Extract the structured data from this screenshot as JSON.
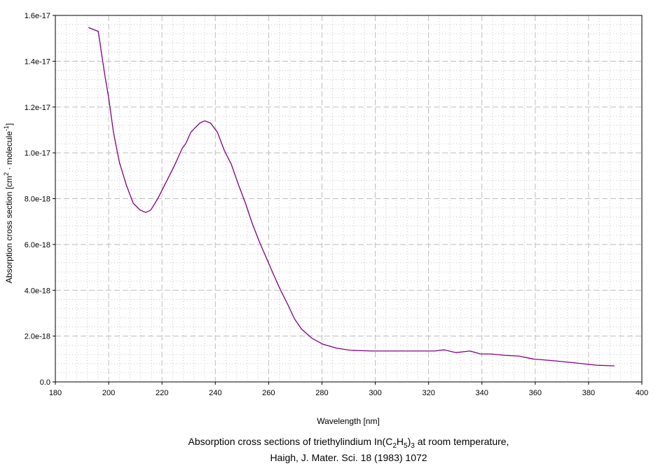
{
  "chart_data": {
    "type": "line",
    "xlabel": "Wavelength [nm]",
    "ylabel": {
      "main": "Absorption cross section [cm",
      "sup1": "2",
      "mid": " · molecule",
      "sup2": "-1",
      "end": "]"
    },
    "xlim": [
      180,
      400
    ],
    "ylim": [
      0,
      1.6e-17
    ],
    "x_ticks": [
      180,
      200,
      220,
      240,
      260,
      280,
      300,
      320,
      340,
      360,
      380,
      400
    ],
    "x_tick_labels": [
      "180",
      "200",
      "220",
      "240",
      "260",
      "280",
      "300",
      "320",
      "340",
      "360",
      "380",
      "400"
    ],
    "y_ticks": [
      0,
      2e-18,
      4e-18,
      6e-18,
      8e-18,
      1e-17,
      1.2e-17,
      1.4e-17,
      1.6e-17
    ],
    "y_tick_labels": [
      "0.0",
      "2.0e-18",
      "4.0e-18",
      "6.0e-18",
      "8.0e-18",
      "1.0e-17",
      "1.2e-17",
      "1.4e-17",
      "1.6e-17"
    ],
    "grid": true,
    "series": [
      {
        "name": "triethylindium",
        "color": "#800080",
        "x": [
          192.4,
          196.1,
          197.1,
          198.7,
          200,
          201.8,
          204,
          206.6,
          209.2,
          211.8,
          213.9,
          215.8,
          218.4,
          221,
          224.5,
          227.6,
          228.9,
          230.8,
          234.2,
          236,
          238.2,
          240.8,
          243.4,
          246,
          248.7,
          251.3,
          253.9,
          256.6,
          259.2,
          261.8,
          264.5,
          267.1,
          269.7,
          272.4,
          276.3,
          280.3,
          285.5,
          290.8,
          298.7,
          317.1,
          322.4,
          325.8,
          330.3,
          335.5,
          339.5,
          343.4,
          348.7,
          353.9,
          359.2,
          367.1,
          375,
          382.9,
          389.7
        ],
        "y": [
          1.547e-17,
          1.53e-17,
          1.45e-17,
          1.33e-17,
          1.24e-17,
          1.09e-17,
          9.6e-18,
          8.6e-18,
          7.8e-18,
          7.5e-18,
          7.4e-18,
          7.5e-18,
          8e-18,
          8.6e-18,
          9.4e-18,
          1.02e-17,
          1.04e-17,
          1.09e-17,
          1.13e-17,
          1.14e-17,
          1.13e-17,
          1.09e-17,
          1.01e-17,
          9.5e-18,
          8.6e-18,
          7.8e-18,
          6.9e-18,
          6.1e-18,
          5.4e-18,
          4.7e-18,
          4e-18,
          3.4e-18,
          2.75e-18,
          2.3e-18,
          1.9e-18,
          1.65e-18,
          1.47e-18,
          1.38e-18,
          1.35e-18,
          1.35e-18,
          1.35e-18,
          1.4e-18,
          1.28e-18,
          1.35e-18,
          1.22e-18,
          1.22e-18,
          1.16e-18,
          1.13e-18,
          1e-18,
          9.2e-19,
          8.3e-19,
          7.3e-19,
          7e-19
        ]
      }
    ]
  },
  "caption": {
    "line1_a": "Absorption cross sections of triethylindium In(C",
    "sub1": "2",
    "line1_b": "H",
    "sub2": "5",
    "line1_c": ")",
    "sub3": "3",
    "line1_d": " at room temperature,",
    "line2": "Haigh, J. Mater. Sci. 18 (1983) 1072"
  }
}
